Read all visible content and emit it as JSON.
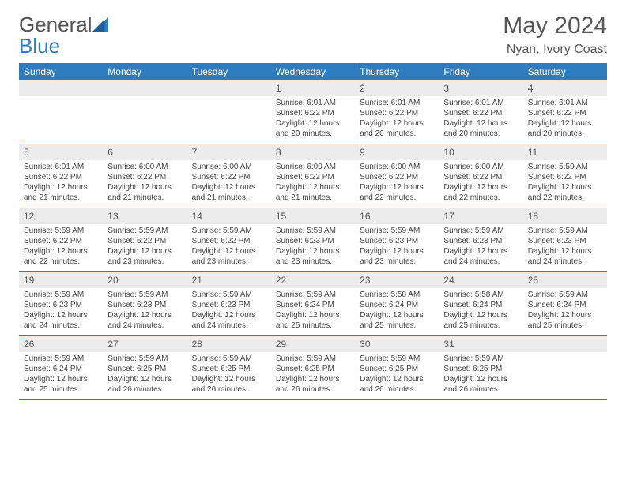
{
  "logo": {
    "text1": "General",
    "text2": "Blue"
  },
  "title": "May 2024",
  "location": "Nyan, Ivory Coast",
  "colors": {
    "header_bg": "#2f7bbf",
    "header_text": "#ffffff",
    "daynum_bg": "#ececec",
    "border": "#2f7bbf",
    "body_text": "#444444",
    "title_text": "#555555"
  },
  "fonts": {
    "title_size": 30,
    "location_size": 16,
    "dayheader_size": 12,
    "daynum_size": 12,
    "cell_size": 10
  },
  "day_headers": [
    "Sunday",
    "Monday",
    "Tuesday",
    "Wednesday",
    "Thursday",
    "Friday",
    "Saturday"
  ],
  "weeks": [
    [
      {
        "num": "",
        "lines": []
      },
      {
        "num": "",
        "lines": []
      },
      {
        "num": "",
        "lines": []
      },
      {
        "num": "1",
        "lines": [
          "Sunrise: 6:01 AM",
          "Sunset: 6:22 PM",
          "Daylight: 12 hours and 20 minutes."
        ]
      },
      {
        "num": "2",
        "lines": [
          "Sunrise: 6:01 AM",
          "Sunset: 6:22 PM",
          "Daylight: 12 hours and 20 minutes."
        ]
      },
      {
        "num": "3",
        "lines": [
          "Sunrise: 6:01 AM",
          "Sunset: 6:22 PM",
          "Daylight: 12 hours and 20 minutes."
        ]
      },
      {
        "num": "4",
        "lines": [
          "Sunrise: 6:01 AM",
          "Sunset: 6:22 PM",
          "Daylight: 12 hours and 20 minutes."
        ]
      }
    ],
    [
      {
        "num": "5",
        "lines": [
          "Sunrise: 6:01 AM",
          "Sunset: 6:22 PM",
          "Daylight: 12 hours and 21 minutes."
        ]
      },
      {
        "num": "6",
        "lines": [
          "Sunrise: 6:00 AM",
          "Sunset: 6:22 PM",
          "Daylight: 12 hours and 21 minutes."
        ]
      },
      {
        "num": "7",
        "lines": [
          "Sunrise: 6:00 AM",
          "Sunset: 6:22 PM",
          "Daylight: 12 hours and 21 minutes."
        ]
      },
      {
        "num": "8",
        "lines": [
          "Sunrise: 6:00 AM",
          "Sunset: 6:22 PM",
          "Daylight: 12 hours and 21 minutes."
        ]
      },
      {
        "num": "9",
        "lines": [
          "Sunrise: 6:00 AM",
          "Sunset: 6:22 PM",
          "Daylight: 12 hours and 22 minutes."
        ]
      },
      {
        "num": "10",
        "lines": [
          "Sunrise: 6:00 AM",
          "Sunset: 6:22 PM",
          "Daylight: 12 hours and 22 minutes."
        ]
      },
      {
        "num": "11",
        "lines": [
          "Sunrise: 5:59 AM",
          "Sunset: 6:22 PM",
          "Daylight: 12 hours and 22 minutes."
        ]
      }
    ],
    [
      {
        "num": "12",
        "lines": [
          "Sunrise: 5:59 AM",
          "Sunset: 6:22 PM",
          "Daylight: 12 hours and 22 minutes."
        ]
      },
      {
        "num": "13",
        "lines": [
          "Sunrise: 5:59 AM",
          "Sunset: 6:22 PM",
          "Daylight: 12 hours and 23 minutes."
        ]
      },
      {
        "num": "14",
        "lines": [
          "Sunrise: 5:59 AM",
          "Sunset: 6:22 PM",
          "Daylight: 12 hours and 23 minutes."
        ]
      },
      {
        "num": "15",
        "lines": [
          "Sunrise: 5:59 AM",
          "Sunset: 6:23 PM",
          "Daylight: 12 hours and 23 minutes."
        ]
      },
      {
        "num": "16",
        "lines": [
          "Sunrise: 5:59 AM",
          "Sunset: 6:23 PM",
          "Daylight: 12 hours and 23 minutes."
        ]
      },
      {
        "num": "17",
        "lines": [
          "Sunrise: 5:59 AM",
          "Sunset: 6:23 PM",
          "Daylight: 12 hours and 24 minutes."
        ]
      },
      {
        "num": "18",
        "lines": [
          "Sunrise: 5:59 AM",
          "Sunset: 6:23 PM",
          "Daylight: 12 hours and 24 minutes."
        ]
      }
    ],
    [
      {
        "num": "19",
        "lines": [
          "Sunrise: 5:59 AM",
          "Sunset: 6:23 PM",
          "Daylight: 12 hours and 24 minutes."
        ]
      },
      {
        "num": "20",
        "lines": [
          "Sunrise: 5:59 AM",
          "Sunset: 6:23 PM",
          "Daylight: 12 hours and 24 minutes."
        ]
      },
      {
        "num": "21",
        "lines": [
          "Sunrise: 5:59 AM",
          "Sunset: 6:23 PM",
          "Daylight: 12 hours and 24 minutes."
        ]
      },
      {
        "num": "22",
        "lines": [
          "Sunrise: 5:59 AM",
          "Sunset: 6:24 PM",
          "Daylight: 12 hours and 25 minutes."
        ]
      },
      {
        "num": "23",
        "lines": [
          "Sunrise: 5:58 AM",
          "Sunset: 6:24 PM",
          "Daylight: 12 hours and 25 minutes."
        ]
      },
      {
        "num": "24",
        "lines": [
          "Sunrise: 5:58 AM",
          "Sunset: 6:24 PM",
          "Daylight: 12 hours and 25 minutes."
        ]
      },
      {
        "num": "25",
        "lines": [
          "Sunrise: 5:59 AM",
          "Sunset: 6:24 PM",
          "Daylight: 12 hours and 25 minutes."
        ]
      }
    ],
    [
      {
        "num": "26",
        "lines": [
          "Sunrise: 5:59 AM",
          "Sunset: 6:24 PM",
          "Daylight: 12 hours and 25 minutes."
        ]
      },
      {
        "num": "27",
        "lines": [
          "Sunrise: 5:59 AM",
          "Sunset: 6:25 PM",
          "Daylight: 12 hours and 26 minutes."
        ]
      },
      {
        "num": "28",
        "lines": [
          "Sunrise: 5:59 AM",
          "Sunset: 6:25 PM",
          "Daylight: 12 hours and 26 minutes."
        ]
      },
      {
        "num": "29",
        "lines": [
          "Sunrise: 5:59 AM",
          "Sunset: 6:25 PM",
          "Daylight: 12 hours and 26 minutes."
        ]
      },
      {
        "num": "30",
        "lines": [
          "Sunrise: 5:59 AM",
          "Sunset: 6:25 PM",
          "Daylight: 12 hours and 26 minutes."
        ]
      },
      {
        "num": "31",
        "lines": [
          "Sunrise: 5:59 AM",
          "Sunset: 6:25 PM",
          "Daylight: 12 hours and 26 minutes."
        ]
      },
      {
        "num": "",
        "lines": []
      }
    ]
  ]
}
